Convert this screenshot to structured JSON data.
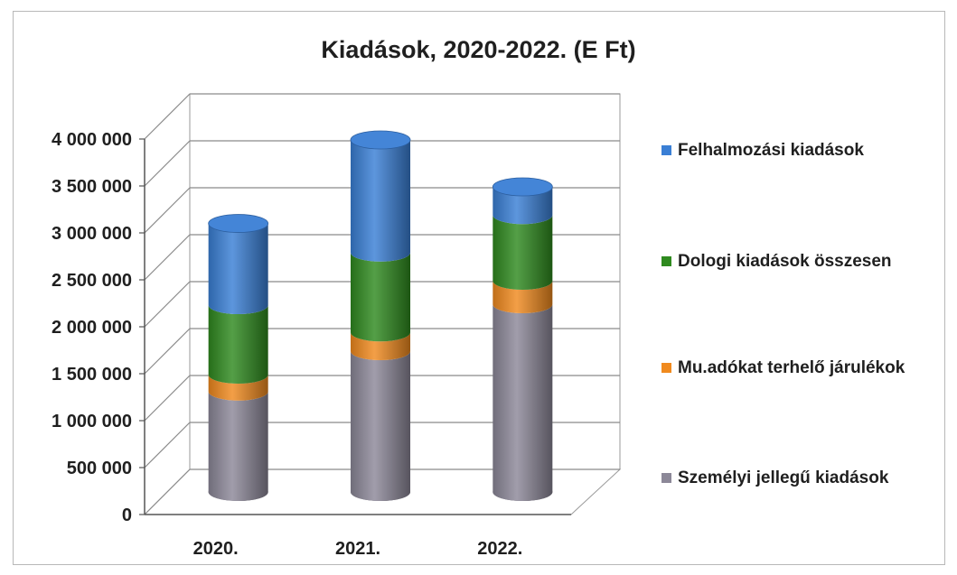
{
  "chart_data": {
    "type": "bar",
    "stacked": true,
    "style": "3d-cylinder",
    "title": "Kiadások, 2020-2022. (E Ft)",
    "xlabel": "",
    "ylabel": "",
    "categories": [
      "2020.",
      "2021.",
      "2022."
    ],
    "ylim": [
      0,
      4000000
    ],
    "yticks": [
      0,
      500000,
      1000000,
      1500000,
      2000000,
      2500000,
      3000000,
      3500000,
      4000000
    ],
    "ytick_labels": [
      "0",
      "500 000",
      "1 000 000",
      "1 500 000",
      "2 000 000",
      "2 500 000",
      "3 000 000",
      "3 500 000",
      "4 000 000"
    ],
    "grid": true,
    "legend_position": "right",
    "series": [
      {
        "name": "Személyi jellegű kiadások",
        "color": "#8c8898",
        "values": [
          1070000,
          1500000,
          2000000
        ]
      },
      {
        "name": "Mu.adókat terhelő járulékok",
        "color": "#f08a1e",
        "values": [
          180000,
          200000,
          250000
        ]
      },
      {
        "name": "Dologi kiadások összesen",
        "color": "#2f8a1f",
        "values": [
          740000,
          850000,
          700000
        ]
      },
      {
        "name": "Felhalmozási kiadások",
        "color": "#3a7fd5",
        "values": [
          870000,
          1200000,
          300000
        ]
      }
    ]
  }
}
